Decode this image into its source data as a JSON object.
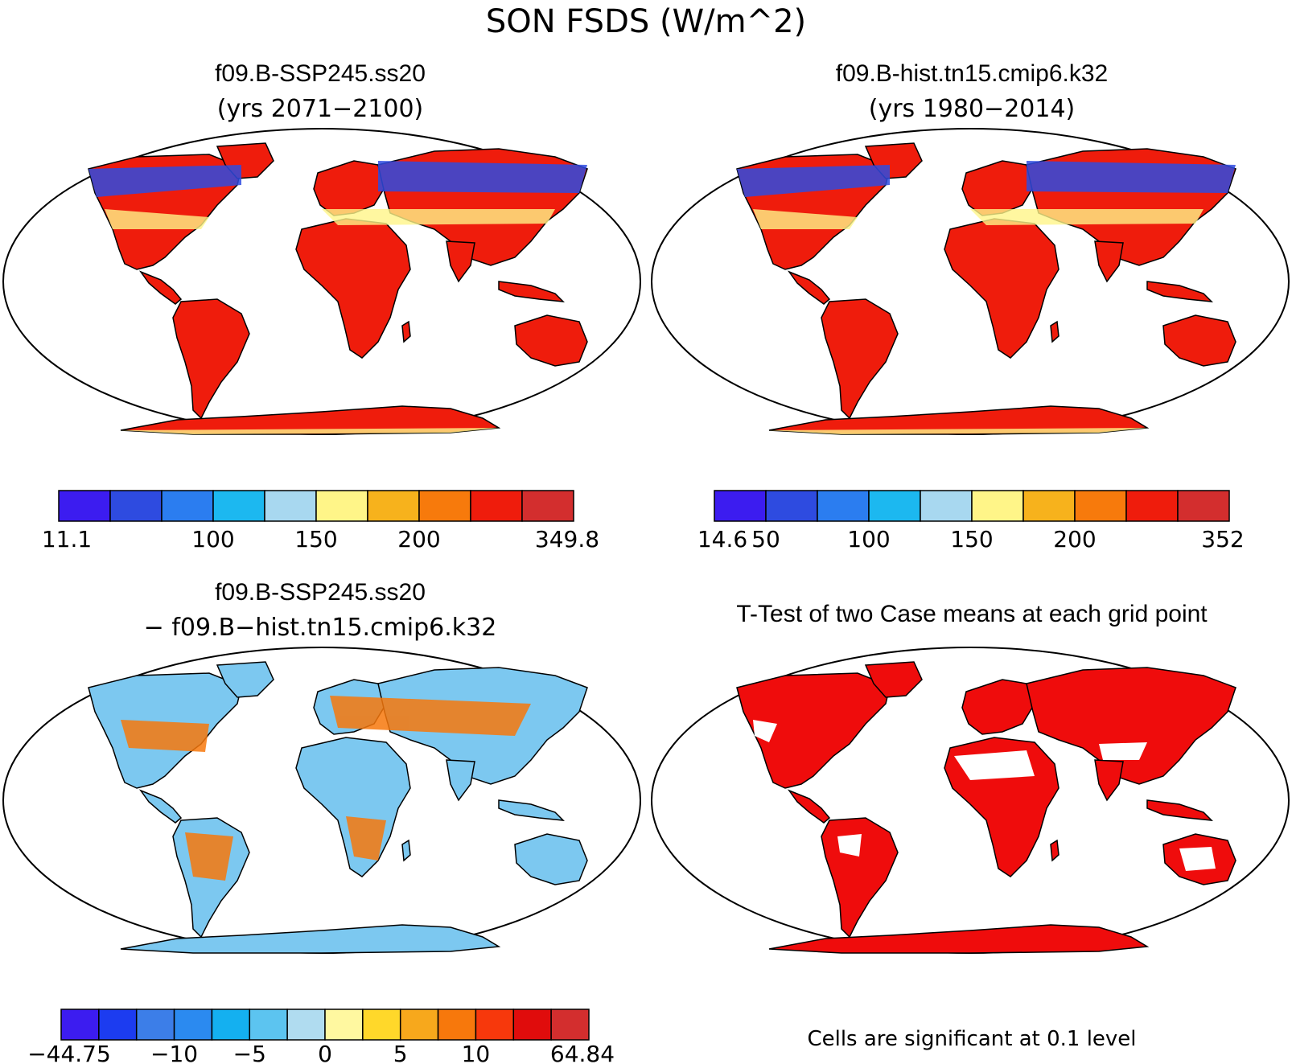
{
  "figure_title": "SON FSDS (W/m^2)",
  "panels": [
    {
      "title": "f09.B-SSP245.ss20",
      "subtitle": "(yrs 2071−2100)",
      "colors": [
        "#3c1cf0",
        "#2e4be0",
        "#2b7df0",
        "#1cb8f0",
        "#a8d8f0",
        "#fff588",
        "#f7b21c",
        "#f77a0c",
        "#ef1c0c",
        "#d32e2e"
      ],
      "ticks": [
        {
          "label": "11.1",
          "at": 0
        },
        {
          "label": "100",
          "at": 3
        },
        {
          "label": "150",
          "at": 5
        },
        {
          "label": "200",
          "at": 7
        },
        {
          "label": "349.8",
          "at": 10
        }
      ]
    },
    {
      "title": "f09.B-hist.tn15.cmip6.k32",
      "subtitle": "(yrs 1980−2014)",
      "colors": [
        "#3c1cf0",
        "#2e4be0",
        "#2b7df0",
        "#1cb8f0",
        "#a8d8f0",
        "#fff588",
        "#f7b21c",
        "#f77a0c",
        "#ef1c0c",
        "#d32e2e"
      ],
      "ticks": [
        {
          "label": "14.6",
          "at": 0
        },
        {
          "label": "50",
          "at": 1
        },
        {
          "label": "100",
          "at": 3
        },
        {
          "label": "150",
          "at": 5
        },
        {
          "label": "200",
          "at": 7
        },
        {
          "label": "352",
          "at": 10
        }
      ]
    },
    {
      "title": "f09.B-SSP245.ss20",
      "subtitle": "− f09.B−hist.tn15.cmip6.k32",
      "colors": [
        "#3c1cf0",
        "#1c3cf0",
        "#3c7ee8",
        "#2b8af0",
        "#14b0f0",
        "#5cc4f0",
        "#b0dcf0",
        "#fff8a0",
        "#ffd82a",
        "#f7a81c",
        "#f7780c",
        "#f7380c",
        "#e00c0c",
        "#d32e2e"
      ],
      "ticks": [
        {
          "label": "−44.75",
          "at": 0
        },
        {
          "label": "−10",
          "at": 3
        },
        {
          "label": "−5",
          "at": 5
        },
        {
          "label": "0",
          "at": 7
        },
        {
          "label": "5",
          "at": 9
        },
        {
          "label": "10",
          "at": 11
        },
        {
          "label": "64.84",
          "at": 14
        }
      ]
    },
    {
      "title": "T-Test of two Case means at each grid point",
      "note": "Cells are significant at 0.1 level"
    }
  ],
  "colors": {
    "ocean": "#ffffff",
    "significant": "#ef0c0c",
    "coast": "#000000",
    "ice_label": "#f2cc40"
  }
}
